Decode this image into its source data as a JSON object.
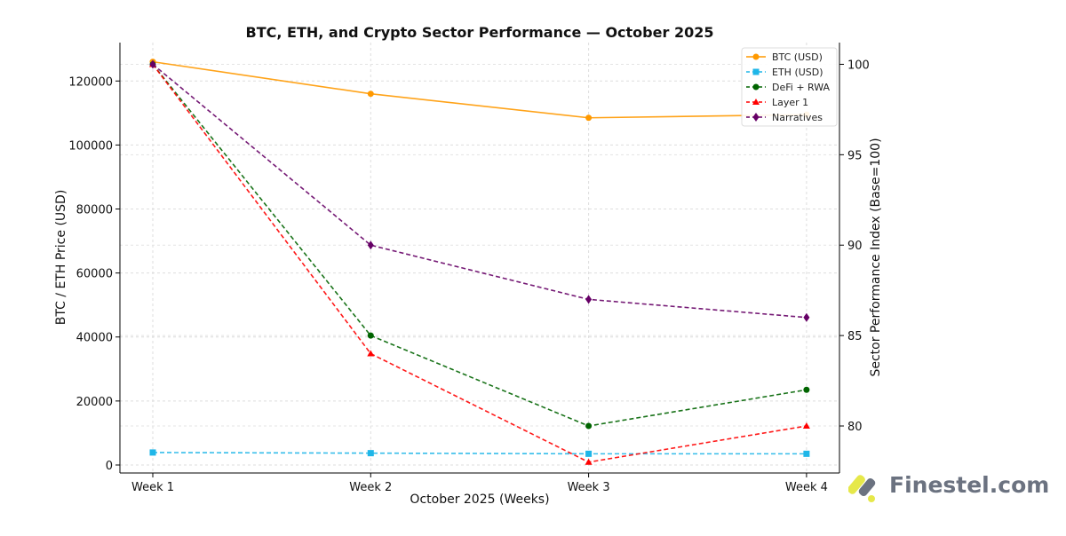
{
  "chart_data": {
    "type": "line",
    "title": "BTC, ETH, and Crypto Sector Performance — October 2025",
    "xlabel": "October 2025 (Weeks)",
    "ylabel_left": "BTC / ETH Price (USD)",
    "ylabel_right": "Sector Performance Index (Base=100)",
    "categories": [
      "Week 1",
      "Week 2",
      "Week 3",
      "Week 4"
    ],
    "ylim_left": [
      -2500,
      132000
    ],
    "ylim_right": [
      77.4,
      101.2
    ],
    "yticks_left": [
      0,
      20000,
      40000,
      60000,
      80000,
      100000,
      120000
    ],
    "yticks_right": [
      80,
      85,
      90,
      95,
      100
    ],
    "grid": true,
    "legend": "top-right",
    "series": [
      {
        "name": "BTC (USD)",
        "axis": "left",
        "values": [
          126000,
          116000,
          108500,
          109500
        ],
        "color": "#ff9900",
        "dash": false,
        "marker": "circle"
      },
      {
        "name": "ETH (USD)",
        "axis": "left",
        "values": [
          3900,
          3700,
          3500,
          3500
        ],
        "color": "#1fb6e8",
        "dash": true,
        "marker": "square"
      },
      {
        "name": "DeFi + RWA",
        "axis": "right",
        "values": [
          100,
          85,
          80,
          82
        ],
        "color": "#006400",
        "dash": true,
        "marker": "circle"
      },
      {
        "name": "Layer 1",
        "axis": "right",
        "values": [
          100,
          84,
          78,
          80
        ],
        "color": "#ff0000",
        "dash": true,
        "marker": "triangle"
      },
      {
        "name": "Narratives",
        "axis": "right",
        "values": [
          100,
          90,
          87,
          86
        ],
        "color": "#660066",
        "dash": true,
        "marker": "diamond"
      }
    ]
  },
  "branding": {
    "logo_text": "Finestel.com"
  }
}
